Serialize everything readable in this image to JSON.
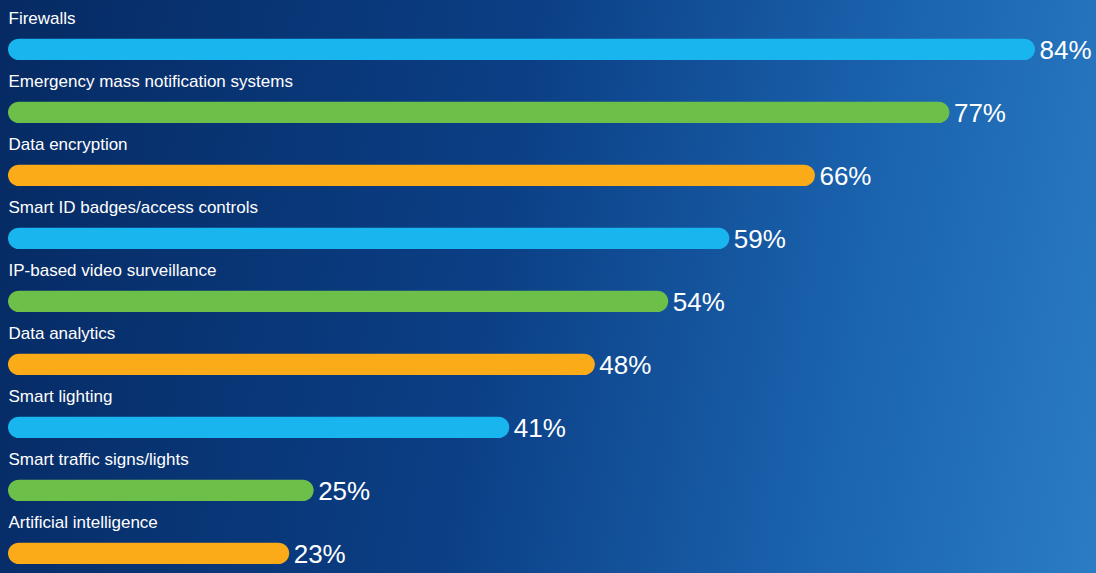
{
  "chart_data": {
    "type": "bar",
    "orientation": "horizontal",
    "categories": [
      "Firewalls",
      "Emergency mass notification systems",
      "Data encryption",
      "Smart ID badges/access controls",
      "IP-based video surveillance",
      "Data analytics",
      "Smart lighting",
      "Smart traffic signs/lights",
      "Artificial intelligence"
    ],
    "values": [
      84,
      77,
      66,
      59,
      54,
      48,
      41,
      25,
      23
    ],
    "value_labels": [
      "84%",
      "77%",
      "66%",
      "59%",
      "54%",
      "48%",
      "41%",
      "25%",
      "23%"
    ],
    "colors": [
      "#19b5ee",
      "#6cc04a",
      "#fbab18",
      "#19b5ee",
      "#6cc04a",
      "#fbab18",
      "#19b5ee",
      "#6cc04a",
      "#fbab18"
    ],
    "data_labels": true,
    "tick_labels": false,
    "grid": false
  }
}
